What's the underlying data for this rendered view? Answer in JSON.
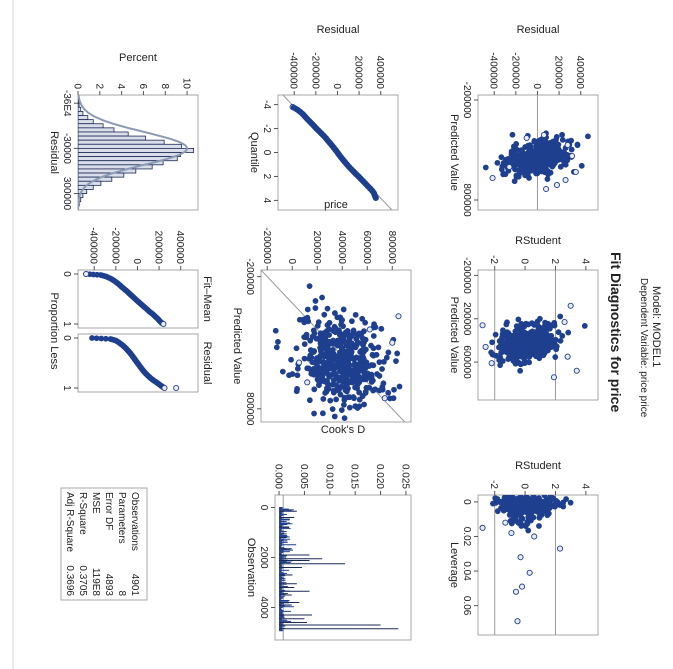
{
  "page": {
    "title": "Fit Diagnostics for price",
    "model_label": "Model: MODEL1",
    "dependent_label": "Dependent Variable: price price"
  },
  "colors": {
    "marker": "#1f3f8f",
    "marker_fill": "#e8ecf6",
    "ref_line": "#9a9a9a",
    "bar_fill": "#d9deea",
    "bar_edge": "#1d2a55",
    "curve": "#8c9bb5",
    "frame": "#a7a7a7",
    "text": "#222222"
  },
  "chart_data": [
    {
      "id": "resid_vs_pred",
      "type": "scatter",
      "xlabel": "Predicted Value",
      "ylabel": "Residual",
      "xlim": [
        -250000,
        900000
      ],
      "ylim": [
        -550000,
        560000
      ],
      "xticks": [
        -200000,
        800000
      ],
      "yticks": [
        -400000,
        -200000,
        0,
        200000,
        400000
      ],
      "refline_y": [
        0
      ],
      "n_points": 4901,
      "points": [
        [
          520000,
          355000
        ],
        [
          580000,
          -415000
        ],
        [
          180000,
          -100000
        ],
        [
          250000,
          280000
        ],
        [
          360000,
          320000
        ],
        [
          600000,
          260000
        ],
        [
          650000,
          180000
        ],
        [
          470000,
          -260000
        ],
        [
          690000,
          80000
        ],
        [
          150000,
          60000
        ]
      ]
    },
    {
      "id": "rstudent_vs_pred",
      "type": "scatter",
      "xlabel": "Predicted Value",
      "ylabel": "RStudent",
      "xlim": [
        -250000,
        950000
      ],
      "ylim": [
        -3.1,
        4.8
      ],
      "xticks": [
        -200000,
        200000,
        600000
      ],
      "yticks": [
        -2,
        0,
        2,
        4
      ],
      "refline_y": [
        -2,
        2
      ],
      "n_points": 4901,
      "points": [
        [
          80000,
          3.0
        ],
        [
          680000,
          3.4
        ],
        [
          230000,
          2.6
        ],
        [
          260000,
          -2.8
        ],
        [
          460000,
          -2.6
        ],
        [
          550000,
          2.8
        ],
        [
          610000,
          -2.2
        ],
        [
          740000,
          1.9
        ]
      ]
    },
    {
      "id": "rstudent_vs_leverage",
      "type": "scatter",
      "xlabel": "Leverage",
      "ylabel": "RStudent",
      "xlim": [
        -0.004,
        0.077
      ],
      "ylim": [
        -3.1,
        4.8
      ],
      "xticks": [
        0.0,
        0.02,
        0.04,
        0.06
      ],
      "yticks": [
        -2,
        0,
        2,
        4
      ],
      "refline_y": [
        -2,
        2
      ],
      "n_points": 4901,
      "points": [
        [
          0.069,
          -0.5
        ],
        [
          0.052,
          -0.6
        ],
        [
          0.049,
          -0.2
        ],
        [
          0.041,
          0.3
        ],
        [
          0.032,
          -0.3
        ],
        [
          0.027,
          2.3
        ],
        [
          0.015,
          -2.8
        ],
        [
          0.012,
          -1.3
        ],
        [
          0.02,
          0.6
        ],
        [
          0.018,
          -0.9
        ]
      ]
    },
    {
      "id": "resid_qq",
      "type": "scatter",
      "xlabel": "Quantile",
      "ylabel": "Residual",
      "xlim": [
        -4.8,
        4.8
      ],
      "ylim": [
        -550000,
        560000
      ],
      "xticks": [
        -4,
        -2,
        0,
        2,
        4
      ],
      "yticks": [
        -400000,
        -200000,
        0,
        200000,
        400000
      ],
      "refline": "diagonal",
      "quantiles": [
        -3.8,
        -3.6,
        -3.4,
        -3.2,
        -3.0,
        -2.8,
        -2.6,
        -2.4,
        -2.2,
        -2.0,
        -1.8,
        -1.6,
        -1.4,
        -1.2,
        -1.0,
        -0.8,
        -0.6,
        -0.4,
        -0.2,
        0.0,
        0.2,
        0.4,
        0.6,
        0.8,
        1.0,
        1.2,
        1.4,
        1.6,
        1.8,
        2.0,
        2.2,
        2.4,
        2.6,
        2.8,
        3.0,
        3.2,
        3.4,
        3.6,
        3.8
      ],
      "residuals": [
        -415000,
        -375000,
        -345000,
        -320000,
        -300000,
        -280000,
        -258000,
        -236000,
        -215000,
        -195000,
        -172000,
        -150000,
        -128000,
        -107000,
        -90000,
        -70000,
        -52000,
        -34000,
        -16000,
        0,
        16000,
        33000,
        51000,
        69000,
        88000,
        107000,
        128000,
        150000,
        172000,
        195000,
        216000,
        238000,
        259000,
        280000,
        302000,
        322000,
        338000,
        346000,
        355000
      ]
    },
    {
      "id": "price_vs_pred",
      "type": "scatter",
      "xlabel": "Predicted Value",
      "ylabel": "price",
      "xlim": [
        -250000,
        900000
      ],
      "ylim": [
        -250000,
        950000
      ],
      "xticks": [
        -200000,
        800000
      ],
      "yticks": [
        -200000,
        0,
        200000,
        400000,
        600000,
        800000
      ],
      "refline": "diagonal",
      "n_points": 4901,
      "points": [
        [
          100000,
          850000
        ],
        [
          450000,
          55000
        ],
        [
          600000,
          120000
        ],
        [
          720000,
          740000
        ],
        [
          200000,
          620000
        ],
        [
          300000,
          800000
        ]
      ]
    },
    {
      "id": "cooks_d",
      "type": "needle",
      "xlabel": "Observation",
      "ylabel": "Cook's D",
      "xlim": [
        -500,
        5300
      ],
      "ylim": [
        -0.0008,
        0.026
      ],
      "xticks": [
        0,
        2000,
        4000
      ],
      "yticks": [
        0.0,
        0.005,
        0.01,
        0.015,
        0.02,
        0.025
      ],
      "tick_labels_y": [
        "0.000",
        "0.005",
        "0.010",
        "0.015",
        "0.020",
        "0.025"
      ],
      "refline_y": [
        0.00082
      ],
      "n_points": 4901,
      "spikes": [
        [
          150,
          0.0035
        ],
        [
          400,
          0.003
        ],
        [
          780,
          0.002
        ],
        [
          1200,
          0.0015
        ],
        [
          1650,
          0.0025
        ],
        [
          1900,
          0.006
        ],
        [
          2050,
          0.0085
        ],
        [
          2120,
          0.006
        ],
        [
          2250,
          0.013
        ],
        [
          2400,
          0.0045
        ],
        [
          2700,
          0.0025
        ],
        [
          3050,
          0.0035
        ],
        [
          3200,
          0.003
        ],
        [
          3350,
          0.006
        ],
        [
          3500,
          0.0025
        ],
        [
          3800,
          0.004
        ],
        [
          3900,
          0.0025
        ],
        [
          4300,
          0.0065
        ],
        [
          4450,
          0.005
        ],
        [
          4600,
          0.0055
        ],
        [
          4700,
          0.02
        ],
        [
          4850,
          0.0235
        ]
      ]
    },
    {
      "id": "resid_histogram",
      "type": "bar",
      "xlabel": "Residual",
      "ylabel": "Percent",
      "xlim": [
        -420000,
        420000
      ],
      "ylim": [
        0,
        11
      ],
      "xtick_labels": [
        "-36E4",
        "-30000",
        "300000"
      ],
      "xtick_values": [
        -360000,
        -30000,
        300000
      ],
      "yticks": [
        0,
        2,
        4,
        6,
        8,
        10
      ],
      "bins_start": -390000,
      "bin_width": 30000,
      "values": [
        0.05,
        0.1,
        0.25,
        0.45,
        0.9,
        1.4,
        2.3,
        3.3,
        4.6,
        6.2,
        7.9,
        9.5,
        10.6,
        9.4,
        9.1,
        7.8,
        6.8,
        5.3,
        4.2,
        3.1,
        2.1,
        1.4,
        0.8,
        0.45,
        0.25,
        0.12
      ],
      "normal_curve": {
        "mean": -30000,
        "sd": 120000,
        "peak_percent": 10.0
      }
    },
    {
      "id": "fit_mean_spread",
      "type": "scatter",
      "xlabel": "Proportion Less",
      "ylabel": "",
      "panels": [
        "Fit–Mean",
        "Residual"
      ],
      "xlim": [
        -0.08,
        1.08
      ],
      "ylim": [
        -550000,
        560000
      ],
      "xticks": [
        0,
        1
      ],
      "yticks": [
        -400000,
        -200000,
        0,
        200000,
        400000
      ],
      "proportions": [
        0.0,
        0.02,
        0.05,
        0.1,
        0.15,
        0.2,
        0.25,
        0.3,
        0.35,
        0.4,
        0.45,
        0.5,
        0.55,
        0.6,
        0.65,
        0.7,
        0.75,
        0.8,
        0.85,
        0.9,
        0.95,
        0.98,
        1.0
      ],
      "fit_mean": [
        -475000,
        -340000,
        -290000,
        -240000,
        -205000,
        -175000,
        -150000,
        -122000,
        -95000,
        -70000,
        -45000,
        -20000,
        5000,
        32000,
        58000,
        85000,
        110000,
        140000,
        165000,
        190000,
        210000,
        225000,
        240000
      ],
      "residual": [
        -420000,
        -250000,
        -200000,
        -165000,
        -135000,
        -110000,
        -88000,
        -68000,
        -50000,
        -33000,
        -17000,
        0,
        17000,
        34000,
        52000,
        72000,
        95000,
        120000,
        150000,
        185000,
        215000,
        235000,
        250000
      ],
      "residual_outlier": [
        1.0,
        358000
      ]
    }
  ],
  "fit_stats": {
    "rows": [
      {
        "label": "Observations",
        "value": "4901"
      },
      {
        "label": "Parameters",
        "value": "8"
      },
      {
        "label": "Error DF",
        "value": "4893"
      },
      {
        "label": "MSE",
        "value": "119E8"
      },
      {
        "label": "R-Square",
        "value": "0.3705"
      },
      {
        "label": "Adj R-Square",
        "value": "0.3696"
      }
    ]
  }
}
